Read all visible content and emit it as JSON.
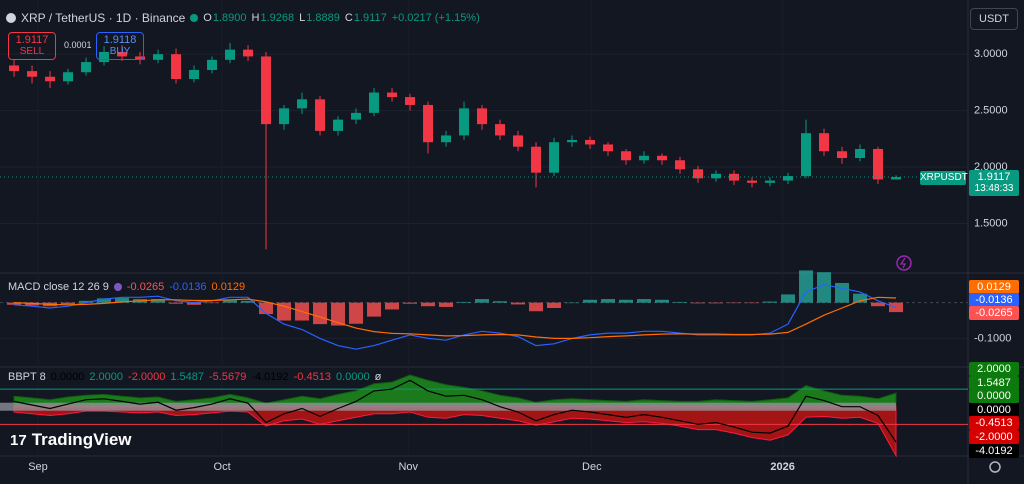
{
  "header": {
    "symbol": "XRP / TetherUS · 1D · Binance",
    "ohlc": [
      {
        "key": "O",
        "value": "1.8900"
      },
      {
        "key": "H",
        "value": "1.9268"
      },
      {
        "key": "L",
        "value": "1.8889"
      },
      {
        "key": "C",
        "value": "1.9117"
      }
    ],
    "change": "+0.0217 (+1.15%)"
  },
  "trade": {
    "sell_price": "1.9117",
    "sell": "SELL",
    "spread": "0.0001",
    "buy_price": "1.9118",
    "buy": "BUY"
  },
  "currency": "USDT",
  "price_tag": {
    "symbol": "XRPUSDT",
    "price": "1.9117",
    "countdown": "13:48:33"
  },
  "logo": "TradingView",
  "chart_data": [
    {
      "type": "candlestick",
      "up_color": "#089981",
      "down_color": "#f23645",
      "open": [
        2.9,
        2.85,
        2.8,
        2.76,
        2.84,
        2.93,
        3.02,
        2.98,
        2.95,
        3.0,
        2.78,
        2.86,
        2.95,
        3.04,
        2.98,
        2.38,
        2.52,
        2.6,
        2.32,
        2.42,
        2.48,
        2.66,
        2.62,
        2.55,
        2.22,
        2.28,
        2.52,
        2.38,
        2.28,
        2.18,
        1.95,
        2.22,
        2.24,
        2.2,
        2.14,
        2.06,
        2.1,
        2.06,
        1.98,
        1.9,
        1.94,
        1.88,
        1.86,
        1.88,
        1.92,
        2.3,
        2.14,
        2.08,
        2.16,
        1.89
      ],
      "high": [
        2.95,
        2.9,
        2.85,
        2.87,
        2.97,
        3.07,
        3.08,
        3.02,
        3.04,
        3.05,
        2.9,
        2.98,
        3.1,
        3.08,
        3.02,
        2.55,
        2.66,
        2.63,
        2.45,
        2.52,
        2.7,
        2.7,
        2.65,
        2.58,
        2.32,
        2.58,
        2.55,
        2.42,
        2.32,
        2.22,
        2.26,
        2.28,
        2.27,
        2.22,
        2.16,
        2.14,
        2.12,
        2.09,
        2.01,
        1.97,
        1.97,
        1.91,
        1.91,
        1.95,
        2.42,
        2.34,
        2.18,
        2.2,
        2.18,
        1.9268
      ],
      "low": [
        2.8,
        2.74,
        2.7,
        2.73,
        2.81,
        2.9,
        2.94,
        2.91,
        2.92,
        2.74,
        2.75,
        2.83,
        2.92,
        2.94,
        1.27,
        2.33,
        2.47,
        2.28,
        2.28,
        2.38,
        2.45,
        2.58,
        2.5,
        2.12,
        2.18,
        2.24,
        2.33,
        2.24,
        2.14,
        1.82,
        1.92,
        2.18,
        2.16,
        2.1,
        2.02,
        2.03,
        2.02,
        1.94,
        1.86,
        1.87,
        1.84,
        1.82,
        1.83,
        1.85,
        1.9,
        2.1,
        2.03,
        2.05,
        1.85,
        1.8889
      ],
      "close": [
        2.85,
        2.8,
        2.76,
        2.84,
        2.93,
        3.02,
        2.98,
        2.95,
        3.0,
        2.78,
        2.86,
        2.95,
        3.04,
        2.98,
        2.38,
        2.52,
        2.6,
        2.32,
        2.42,
        2.48,
        2.66,
        2.62,
        2.55,
        2.22,
        2.28,
        2.52,
        2.38,
        2.28,
        2.18,
        1.95,
        2.22,
        2.24,
        2.2,
        2.14,
        2.06,
        2.1,
        2.06,
        1.98,
        1.9,
        1.94,
        1.88,
        1.86,
        1.88,
        1.92,
        2.3,
        2.14,
        2.08,
        2.16,
        1.89,
        1.9117
      ],
      "xlim": [
        -0.78,
        53
      ],
      "xticks": [
        {
          "value": 1.33,
          "label": "Sep"
        },
        {
          "value": 11.56,
          "label": "Oct"
        },
        {
          "value": 21.9,
          "label": "Nov"
        },
        {
          "value": 32.1,
          "label": "Dec"
        },
        {
          "value": 42.7,
          "label": "2026"
        }
      ],
      "ylim": [
        1.07,
        3.48
      ],
      "yticks": [
        {
          "value": 1.5,
          "label": "1.5000"
        },
        {
          "value": 2,
          "label": "2.0000"
        },
        {
          "value": 2.5,
          "label": "2.5000"
        },
        {
          "value": 3,
          "label": "3.0000"
        }
      ]
    },
    {
      "type": "macd",
      "title": "MACD close 12 26 9",
      "ylim": [
        -0.177,
        0.08
      ],
      "yticks": [
        {
          "value": -0.1,
          "label": "-0.1000"
        }
      ],
      "histogram": {
        "color_up": "#26a69a",
        "color_down": "#ff5252",
        "values": [
          -0.006,
          -0.008,
          -0.01,
          -0.004,
          0.005,
          0.012,
          0.013,
          0.01,
          0.01,
          -0.003,
          -0.006,
          -0.001,
          0.007,
          0.005,
          -0.032,
          -0.05,
          -0.05,
          -0.06,
          -0.064,
          -0.059,
          -0.039,
          -0.019,
          -0.003,
          -0.01,
          -0.012,
          0.002,
          0.01,
          0.004,
          -0.005,
          -0.024,
          -0.015,
          0.0,
          0.008,
          0.01,
          0.008,
          0.01,
          0.008,
          0.002,
          -0.002,
          -0.002,
          -0.001,
          -0.001,
          0.003,
          0.023,
          0.09,
          0.085,
          0.055,
          0.025,
          -0.01,
          -0.0265
        ]
      },
      "macd": {
        "color": "#2962ff",
        "values": [
          -0.006,
          -0.01,
          -0.015,
          -0.01,
          0.0,
          0.01,
          0.015,
          0.015,
          0.018,
          0.005,
          0.0,
          0.005,
          0.015,
          0.015,
          -0.03,
          -0.06,
          -0.075,
          -0.1,
          -0.12,
          -0.13,
          -0.12,
          -0.105,
          -0.09,
          -0.1,
          -0.105,
          -0.09,
          -0.08,
          -0.085,
          -0.095,
          -0.12,
          -0.115,
          -0.1,
          -0.09,
          -0.085,
          -0.085,
          -0.08,
          -0.08,
          -0.085,
          -0.09,
          -0.09,
          -0.09,
          -0.09,
          -0.085,
          -0.06,
          0.03,
          0.05,
          0.04,
          0.03,
          0.005,
          -0.0136
        ]
      },
      "signal": {
        "color": "#ff6d00",
        "values": [
          0.0,
          -0.002,
          -0.005,
          -0.006,
          -0.005,
          -0.002,
          0.002,
          0.005,
          0.008,
          0.008,
          0.006,
          0.006,
          0.008,
          0.01,
          0.002,
          -0.01,
          -0.025,
          -0.04,
          -0.056,
          -0.071,
          -0.081,
          -0.086,
          -0.087,
          -0.09,
          -0.093,
          -0.092,
          -0.09,
          -0.089,
          -0.09,
          -0.096,
          -0.1,
          -0.1,
          -0.098,
          -0.095,
          -0.093,
          -0.09,
          -0.088,
          -0.087,
          -0.088,
          -0.088,
          -0.089,
          -0.089,
          -0.088,
          -0.083,
          -0.06,
          -0.035,
          -0.015,
          0.005,
          0.015,
          0.0129
        ]
      }
    },
    {
      "type": "bbpt",
      "title": "BBPT 8",
      "ylim": [
        -5.6,
        4.4
      ],
      "bands": [
        2,
        -2
      ],
      "band_colors": [
        "#089981",
        "#f23645"
      ],
      "bull": {
        "color": "#1b7a1b",
        "values": [
          1.2,
          1.0,
          0.8,
          1.1,
          1.3,
          1.4,
          1.2,
          1.0,
          1.1,
          0.6,
          0.8,
          1.0,
          1.4,
          1.0,
          0.4,
          0.8,
          1.2,
          0.9,
          1.4,
          1.8,
          2.6,
          2.8,
          3.6,
          3.0,
          2.5,
          2.2,
          1.8,
          1.3,
          1.0,
          0.5,
          0.8,
          0.9,
          0.8,
          0.7,
          0.6,
          0.8,
          0.7,
          0.6,
          0.6,
          0.8,
          0.7,
          0.6,
          0.8,
          1.0,
          2.4,
          1.8,
          1.3,
          1.2,
          0.9,
          1.5487
        ]
      },
      "bear": {
        "color": "#a31515",
        "values": [
          -0.6,
          -0.8,
          -1.0,
          -0.8,
          -0.5,
          -0.5,
          -0.6,
          -0.7,
          -0.6,
          -1.0,
          -0.9,
          -0.7,
          -0.5,
          -0.6,
          -2.2,
          -1.6,
          -1.4,
          -2.0,
          -1.6,
          -1.2,
          -0.8,
          -0.8,
          -0.6,
          -1.2,
          -1.3,
          -0.9,
          -1.0,
          -1.3,
          -1.6,
          -2.1,
          -1.7,
          -1.3,
          -1.4,
          -1.6,
          -1.8,
          -1.7,
          -1.9,
          -2.2,
          -2.6,
          -2.6,
          -3.0,
          -3.5,
          -3.8,
          -3.2,
          -1.2,
          -1.1,
          -1.3,
          -1.2,
          -1.9,
          -5.5679
        ]
      },
      "line": {
        "color": "#000000",
        "values": [
          0.6,
          0.2,
          -0.2,
          0.3,
          0.8,
          0.9,
          0.6,
          0.3,
          0.5,
          -0.4,
          -0.1,
          0.3,
          0.9,
          0.4,
          -1.8,
          -0.8,
          -0.2,
          -1.1,
          -0.2,
          0.6,
          1.8,
          2.0,
          3.0,
          1.8,
          1.2,
          1.3,
          0.8,
          0.0,
          -0.6,
          -1.6,
          -0.9,
          -0.4,
          -0.6,
          -0.9,
          -1.2,
          -0.9,
          -1.2,
          -1.6,
          -2.0,
          -1.8,
          -2.3,
          -2.9,
          -3.0,
          -2.2,
          1.2,
          0.7,
          0.0,
          0.0,
          -1.0,
          -4.0192
        ]
      },
      "legend": [
        {
          "text": "0.0000",
          "color": "#000000"
        },
        {
          "text": "2.0000",
          "color": "#089981"
        },
        {
          "text": "-2.0000",
          "color": "#f23645"
        },
        {
          "text": "1.5487",
          "color": "#089981"
        },
        {
          "text": "-5.5679",
          "color": "#f23645"
        },
        {
          "text": "-4.0192",
          "color": "#000000"
        },
        {
          "text": "-0.4513",
          "color": "#f23645"
        },
        {
          "text": "0.0000",
          "color": "#089981"
        },
        {
          "text": "ø",
          "color": "#d1d4dc"
        }
      ],
      "axis_labels": [
        {
          "text": "2.0000",
          "color": "#0c7a0c"
        },
        {
          "text": "1.5487",
          "color": "#0c7a0c"
        },
        {
          "text": "0.0000",
          "color": "#0c7a0c"
        },
        {
          "text": "0.0000",
          "color": "#000000"
        },
        {
          "text": "-0.4513",
          "color": "#d50000"
        },
        {
          "text": "-2.0000",
          "color": "#d50000"
        },
        {
          "text": "-4.0192",
          "color": "#000000"
        }
      ]
    }
  ]
}
